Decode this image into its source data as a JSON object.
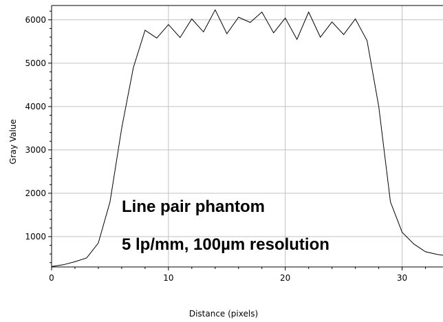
{
  "chart_data": {
    "type": "line",
    "title": "",
    "xlabel": "Distance (pixels)",
    "ylabel": "Gray Value",
    "xlim": [
      0,
      33.5
    ],
    "ylim": [
      300,
      6330
    ],
    "x_ticks": [
      0,
      10,
      20,
      30
    ],
    "x_tick_labels": [
      "0",
      "10",
      "20",
      "30"
    ],
    "y_ticks": [
      1000,
      2000,
      3000,
      4000,
      5000,
      6000
    ],
    "y_tick_labels": [
      "1000",
      "2000",
      "3000",
      "4000",
      "5000",
      "6000"
    ],
    "grid": true,
    "legend": "none",
    "line_color": "#000000",
    "grid_color": "#c0c0c0",
    "series": [
      {
        "x": [
          0,
          1,
          2,
          3,
          4,
          5,
          6,
          7,
          8,
          9,
          10,
          11,
          12,
          13,
          14,
          15,
          16,
          17,
          18,
          19,
          20,
          21,
          22,
          23,
          24,
          25,
          26,
          27,
          28,
          29,
          30,
          31,
          32,
          33,
          33.5
        ],
        "values": [
          310,
          350,
          420,
          510,
          850,
          1800,
          3500,
          4900,
          5760,
          5580,
          5890,
          5590,
          6020,
          5720,
          6230,
          5680,
          6060,
          5940,
          6180,
          5700,
          6040,
          5550,
          6180,
          5600,
          5950,
          5660,
          6020,
          5520,
          4000,
          1800,
          1100,
          830,
          650,
          590,
          570
        ]
      }
    ],
    "annotations": [
      {
        "text": "Line pair phantom"
      },
      {
        "text": "5 lp/mm, 100µm resolution"
      }
    ]
  }
}
